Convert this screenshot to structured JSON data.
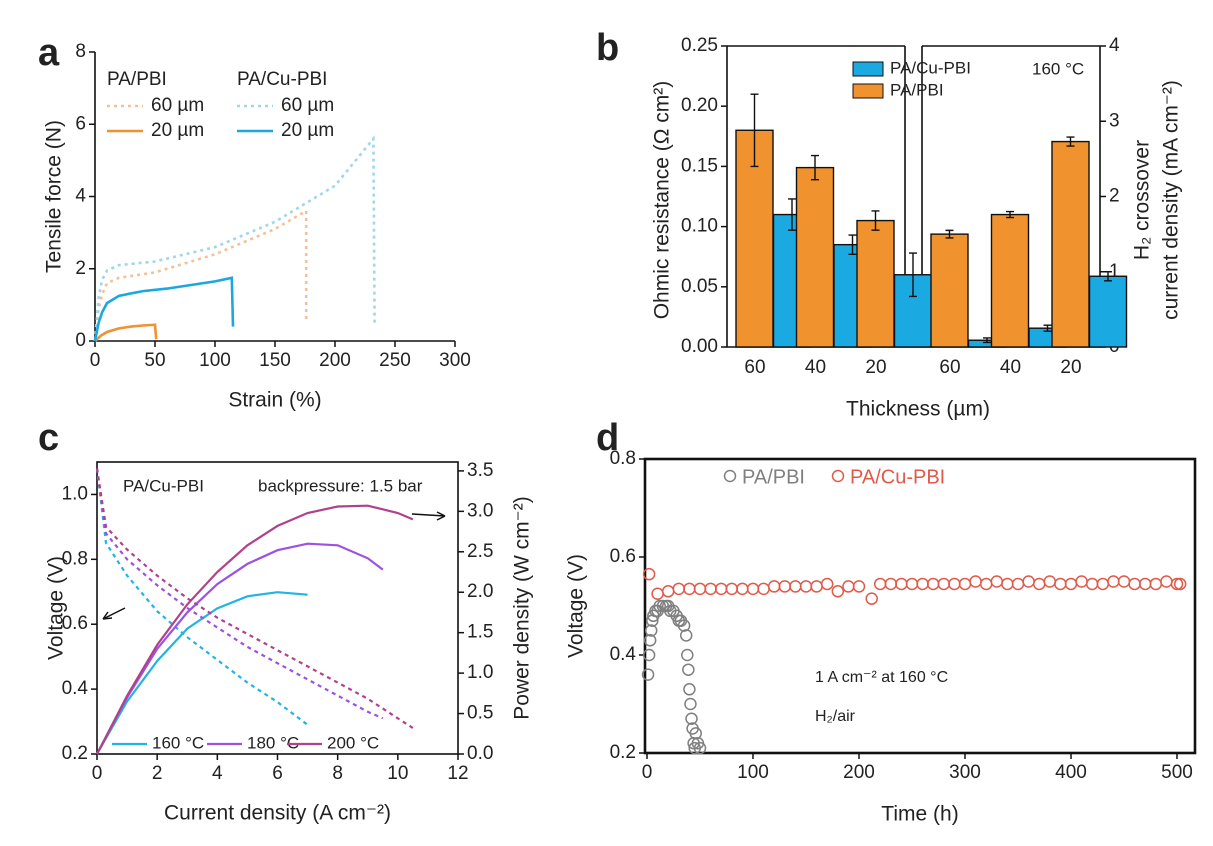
{
  "chart_data": [
    {
      "type": "line",
      "panel": "a",
      "x_label": "Strain (%)",
      "y_label": "Tensile force (N)",
      "xlim": [
        0,
        300
      ],
      "xticks": [
        0,
        50,
        100,
        150,
        200,
        250,
        300
      ],
      "ylim": [
        0,
        8
      ],
      "yticks": [
        0,
        2,
        4,
        6,
        8
      ],
      "groups": [
        {
          "name": "PA/PBI",
          "series": [
            {
              "name": "60 µm",
              "color": "#f4c197",
              "dashed": true,
              "x": [
                0,
                3,
                6,
                10,
                20,
                50,
                100,
                150,
                176,
                176
              ],
              "values": [
                0,
                0.9,
                1.3,
                1.6,
                1.75,
                1.9,
                2.4,
                3.1,
                3.6,
                0.5
              ]
            },
            {
              "name": "20 µm",
              "color": "#ef9234",
              "dashed": false,
              "x": [
                0,
                5,
                10,
                20,
                30,
                40,
                50,
                51
              ],
              "values": [
                0,
                0.15,
                0.25,
                0.35,
                0.4,
                0.43,
                0.45,
                0.05
              ]
            }
          ]
        },
        {
          "name": "PA/Cu-PBI",
          "series": [
            {
              "name": "60 µm",
              "color": "#9fd6ee",
              "dashed": true,
              "x": [
                0,
                3,
                6,
                10,
                20,
                50,
                100,
                150,
                200,
                232,
                233
              ],
              "values": [
                0,
                1.2,
                1.7,
                1.95,
                2.1,
                2.2,
                2.6,
                3.3,
                4.3,
                5.6,
                0.4
              ]
            },
            {
              "name": "20 µm",
              "color": "#1ba8e0",
              "dashed": false,
              "x": [
                0,
                3,
                6,
                10,
                20,
                40,
                60,
                80,
                100,
                114,
                115
              ],
              "values": [
                0,
                0.5,
                0.8,
                1.05,
                1.25,
                1.38,
                1.45,
                1.55,
                1.65,
                1.75,
                0.4
              ]
            }
          ]
        }
      ]
    },
    {
      "type": "bar",
      "panel": "b",
      "x_label": "Thickness (µm)",
      "y_label": "Ohmic resistance (Ω cm²)",
      "y2_label": [
        "H₂ crossover",
        "current density (mA cm⁻²)"
      ],
      "annotation": "160 °C",
      "categories": [
        "60",
        "40",
        "20"
      ],
      "y2_categories": [
        "60",
        "40",
        "20"
      ],
      "ylim": [
        0,
        0.25
      ],
      "yticks": [
        {
          "value": 0,
          "label": "0.00"
        },
        {
          "value": 0.05,
          "label": "0.05"
        },
        {
          "value": 0.1,
          "label": "0.10"
        },
        {
          "value": 0.15,
          "label": "0.15"
        },
        {
          "value": 0.2,
          "label": "0.20"
        },
        {
          "value": 0.25,
          "label": "0.25"
        }
      ],
      "y2lim": [
        0,
        4
      ],
      "y2ticks": [
        0,
        1,
        2,
        3,
        4
      ],
      "series": [
        {
          "name": "PA/Cu-PBI",
          "color": "#1aa9e1",
          "values": [
            0.11,
            0.085,
            0.06
          ],
          "errors": [
            0.013,
            0.008,
            0.018
          ],
          "y2_values": [
            0.09,
            0.25,
            0.94
          ],
          "y2_errors": [
            0.03,
            0.04,
            0.06
          ]
        },
        {
          "name": "PA/PBI",
          "color": "#f0922e",
          "values": [
            0.18,
            0.149,
            0.105
          ],
          "errors": [
            0.03,
            0.01,
            0.008
          ],
          "y2_values": [
            1.5,
            1.76,
            2.73
          ],
          "y2_errors": [
            0.05,
            0.04,
            0.06
          ]
        }
      ]
    },
    {
      "type": "line",
      "panel": "c",
      "x_label": "Current density (A cm⁻²)",
      "y_label": "Voltage (V)",
      "y2_label": "Power density (W cm⁻²)",
      "annotations": [
        "PA/Cu-PBI",
        "backpressure: 1.5 bar"
      ],
      "xlim": [
        0,
        12
      ],
      "xticks": [
        0,
        2,
        4,
        6,
        8,
        10,
        12
      ],
      "ylim": [
        0.2,
        1.1
      ],
      "yticks": [
        0.2,
        0.4,
        0.6,
        0.8,
        {
          "value": 1,
          "label": "1.0"
        }
      ],
      "y2lim": [
        0,
        3.61
      ],
      "y2ticks": [
        {
          "value": 0,
          "label": "0.0"
        },
        0.5,
        {
          "value": 1,
          "label": "1.0"
        },
        1.5,
        {
          "value": 2,
          "label": "2.0"
        },
        2.5,
        {
          "value": 3,
          "label": "3.0"
        },
        3.5
      ],
      "series": [
        {
          "name": "160 °C",
          "color": "#22b4e3",
          "x": [
            0,
            0.3,
            1,
            2,
            3,
            4,
            5,
            6,
            7
          ],
          "values": [
            1.08,
            0.85,
            0.75,
            0.64,
            0.56,
            0.49,
            0.42,
            0.36,
            0.29
          ],
          "power_x": [
            0,
            1,
            2,
            3,
            4,
            5,
            6,
            7
          ],
          "power_values": [
            0,
            0.65,
            1.15,
            1.55,
            1.8,
            1.95,
            2.0,
            1.97
          ]
        },
        {
          "name": "180 °C",
          "color": "#9b52e3",
          "x": [
            0,
            0.3,
            1,
            2,
            3,
            4,
            5,
            6,
            7,
            8,
            9,
            9.5
          ],
          "values": [
            1.08,
            0.88,
            0.8,
            0.72,
            0.65,
            0.59,
            0.53,
            0.48,
            0.43,
            0.38,
            0.33,
            0.31
          ],
          "power_x": [
            0,
            1,
            2,
            3,
            4,
            5,
            6,
            7,
            8,
            9,
            9.5
          ],
          "power_values": [
            0,
            0.7,
            1.3,
            1.75,
            2.1,
            2.35,
            2.52,
            2.6,
            2.58,
            2.42,
            2.28
          ]
        },
        {
          "name": "200 °C",
          "color": "#b0428c",
          "x": [
            0,
            0.3,
            1,
            2,
            3,
            4,
            5,
            6,
            7,
            8,
            9,
            10,
            10.5
          ],
          "values": [
            1.08,
            0.9,
            0.83,
            0.75,
            0.68,
            0.62,
            0.57,
            0.52,
            0.47,
            0.42,
            0.37,
            0.31,
            0.28
          ],
          "power_x": [
            0,
            1,
            2,
            3,
            4,
            5,
            6,
            7,
            8,
            9,
            10,
            10.5
          ],
          "power_values": [
            0,
            0.72,
            1.35,
            1.85,
            2.25,
            2.58,
            2.82,
            2.98,
            3.06,
            3.07,
            2.98,
            2.9
          ]
        }
      ]
    },
    {
      "type": "scatter",
      "panel": "d",
      "x_label": "Time (h)",
      "y_label": "Voltage (V)",
      "annotations": [
        "1 A cm⁻² at 160 °C",
        "H₂/air"
      ],
      "xlim": [
        0,
        517
      ],
      "xticks": [
        0,
        100,
        200,
        300,
        400,
        500
      ],
      "ylim": [
        0.2,
        0.8
      ],
      "yticks": [
        0.2,
        0.4,
        0.6,
        0.8
      ],
      "series": [
        {
          "name": "PA/PBI",
          "color": "#808080",
          "x": [
            1,
            2,
            3,
            4,
            5,
            6,
            8,
            10,
            12,
            15,
            18,
            20,
            22,
            25,
            28,
            30,
            32,
            35,
            37,
            38,
            39,
            40,
            41,
            42,
            43,
            44,
            45,
            46,
            48,
            50
          ],
          "values": [
            0.36,
            0.4,
            0.43,
            0.45,
            0.47,
            0.48,
            0.49,
            0.49,
            0.5,
            0.5,
            0.5,
            0.5,
            0.49,
            0.49,
            0.48,
            0.47,
            0.47,
            0.46,
            0.44,
            0.4,
            0.37,
            0.33,
            0.3,
            0.27,
            0.25,
            0.22,
            0.21,
            0.24,
            0.22,
            0.21
          ]
        },
        {
          "name": "PA/Cu-PBI",
          "color": "#e05a4a",
          "x": [
            2,
            10,
            20,
            30,
            40,
            50,
            60,
            70,
            80,
            90,
            100,
            110,
            120,
            130,
            140,
            150,
            160,
            170,
            180,
            190,
            200,
            212,
            220,
            230,
            240,
            250,
            260,
            270,
            280,
            290,
            300,
            310,
            320,
            330,
            340,
            350,
            360,
            370,
            380,
            390,
            400,
            410,
            420,
            430,
            440,
            450,
            460,
            470,
            480,
            490,
            500,
            503
          ],
          "values": [
            0.565,
            0.525,
            0.53,
            0.535,
            0.535,
            0.535,
            0.535,
            0.535,
            0.535,
            0.535,
            0.535,
            0.535,
            0.54,
            0.54,
            0.54,
            0.54,
            0.54,
            0.545,
            0.53,
            0.54,
            0.54,
            0.515,
            0.545,
            0.545,
            0.545,
            0.545,
            0.545,
            0.545,
            0.545,
            0.545,
            0.545,
            0.55,
            0.545,
            0.55,
            0.545,
            0.545,
            0.55,
            0.545,
            0.55,
            0.545,
            0.545,
            0.55,
            0.545,
            0.545,
            0.55,
            0.55,
            0.545,
            0.545,
            0.545,
            0.55,
            0.545,
            0.545
          ]
        }
      ]
    }
  ]
}
